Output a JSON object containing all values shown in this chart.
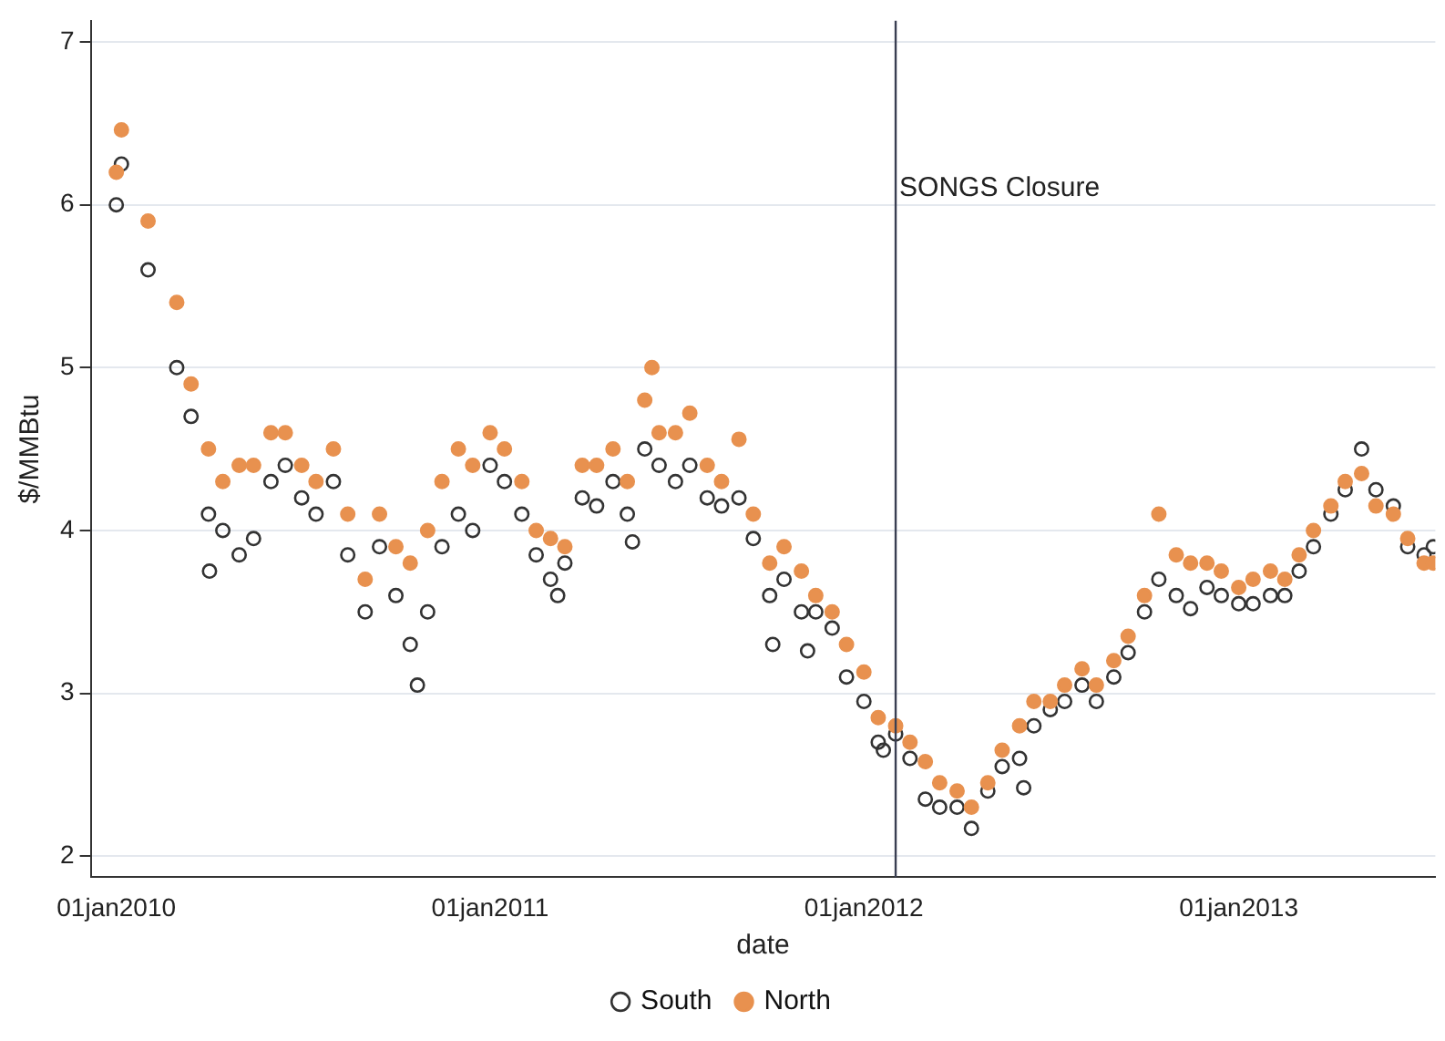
{
  "chart_data": {
    "type": "scatter",
    "xlabel": "date",
    "ylabel": "$/MMBtu",
    "xlim": [
      "2009-12-07",
      "2013-07-12"
    ],
    "ylim": [
      1.87,
      7.13
    ],
    "xticks": [
      {
        "value": "2010-01-01",
        "label": "01jan2010"
      },
      {
        "value": "2011-01-01",
        "label": "01jan2011"
      },
      {
        "value": "2012-01-01",
        "label": "01jan2012"
      },
      {
        "value": "2013-01-01",
        "label": "01jan2013"
      }
    ],
    "yticks": [
      2,
      3,
      4,
      5,
      6,
      7
    ],
    "grid": "y",
    "legend": "bottom",
    "marker": "circle",
    "ref_lines": [
      {
        "axis": "x",
        "value": "2012-02-01",
        "label": "SONGS Closure",
        "color": "#3a3f52"
      }
    ],
    "series": [
      {
        "name": "South",
        "color": "#333333",
        "x": [
          "2010-01-01",
          "2010-01-06",
          "2010-02-01",
          "2010-03-01",
          "2010-03-15",
          "2010-04-01",
          "2010-04-02",
          "2010-04-15",
          "2010-05-01",
          "2010-05-15",
          "2010-06-01",
          "2010-06-15",
          "2010-07-01",
          "2010-07-15",
          "2010-08-01",
          "2010-08-15",
          "2010-09-01",
          "2010-09-15",
          "2010-10-01",
          "2010-10-15",
          "2010-10-22",
          "2010-11-01",
          "2010-11-15",
          "2010-12-01",
          "2010-12-15",
          "2011-01-01",
          "2011-01-15",
          "2011-02-01",
          "2011-02-15",
          "2011-03-01",
          "2011-03-08",
          "2011-03-15",
          "2011-04-01",
          "2011-04-15",
          "2011-05-01",
          "2011-05-15",
          "2011-05-20",
          "2011-06-01",
          "2011-06-15",
          "2011-07-01",
          "2011-07-15",
          "2011-08-01",
          "2011-08-15",
          "2011-09-01",
          "2011-09-15",
          "2011-10-01",
          "2011-10-04",
          "2011-10-15",
          "2011-11-01",
          "2011-11-07",
          "2011-11-15",
          "2011-12-01",
          "2011-12-15",
          "2012-01-01",
          "2012-01-15",
          "2012-01-20",
          "2012-02-01",
          "2012-02-15",
          "2012-03-01",
          "2012-03-15",
          "2012-04-01",
          "2012-04-15",
          "2012-05-01",
          "2012-05-15",
          "2012-06-01",
          "2012-06-05",
          "2012-06-15",
          "2012-07-01",
          "2012-07-15",
          "2012-08-01",
          "2012-08-15",
          "2012-09-01",
          "2012-09-15",
          "2012-10-01",
          "2012-10-15",
          "2012-11-01",
          "2012-11-15",
          "2012-12-01",
          "2012-12-15",
          "2013-01-01",
          "2013-01-15",
          "2013-02-01",
          "2013-02-15",
          "2013-03-01",
          "2013-03-15",
          "2013-04-01",
          "2013-04-15",
          "2013-05-01",
          "2013-05-15",
          "2013-06-01",
          "2013-06-15",
          "2013-07-01",
          "2013-07-10"
        ],
        "values": [
          6.0,
          6.25,
          5.6,
          5.0,
          4.7,
          4.1,
          3.75,
          4.0,
          3.85,
          3.95,
          4.3,
          4.4,
          4.2,
          4.1,
          4.3,
          3.85,
          3.5,
          3.9,
          3.6,
          3.3,
          3.05,
          3.5,
          3.9,
          4.1,
          4.0,
          4.4,
          4.3,
          4.1,
          3.85,
          3.7,
          3.6,
          3.8,
          4.2,
          4.15,
          4.3,
          4.1,
          3.93,
          4.5,
          4.4,
          4.3,
          4.4,
          4.2,
          4.15,
          4.2,
          3.95,
          3.6,
          3.3,
          3.7,
          3.5,
          3.26,
          3.5,
          3.4,
          3.1,
          2.95,
          2.7,
          2.65,
          2.75,
          2.6,
          2.35,
          2.3,
          2.3,
          2.17,
          2.4,
          2.55,
          2.6,
          2.42,
          2.8,
          2.9,
          2.95,
          3.05,
          2.95,
          3.1,
          3.25,
          3.5,
          3.7,
          3.6,
          3.52,
          3.65,
          3.6,
          3.55,
          3.55,
          3.6,
          3.6,
          3.75,
          3.9,
          4.1,
          4.25,
          4.5,
          4.25,
          4.15,
          3.9,
          3.85,
          3.9
        ]
      },
      {
        "name": "North",
        "color": "#e8914f",
        "x": [
          "2010-01-01",
          "2010-01-06",
          "2010-02-01",
          "2010-03-01",
          "2010-03-15",
          "2010-04-01",
          "2010-04-15",
          "2010-05-01",
          "2010-05-15",
          "2010-06-01",
          "2010-06-15",
          "2010-07-01",
          "2010-07-15",
          "2010-08-01",
          "2010-08-15",
          "2010-09-01",
          "2010-09-15",
          "2010-10-01",
          "2010-10-15",
          "2010-11-01",
          "2010-11-15",
          "2010-12-01",
          "2010-12-15",
          "2011-01-01",
          "2011-01-15",
          "2011-02-01",
          "2011-02-15",
          "2011-03-01",
          "2011-03-15",
          "2011-04-01",
          "2011-04-15",
          "2011-05-01",
          "2011-05-15",
          "2011-06-01",
          "2011-06-08",
          "2011-06-15",
          "2011-07-01",
          "2011-07-15",
          "2011-08-01",
          "2011-08-15",
          "2011-09-01",
          "2011-09-15",
          "2011-10-01",
          "2011-10-15",
          "2011-11-01",
          "2011-11-15",
          "2011-12-01",
          "2011-12-15",
          "2012-01-01",
          "2012-01-15",
          "2012-02-01",
          "2012-02-15",
          "2012-03-01",
          "2012-03-15",
          "2012-04-01",
          "2012-04-15",
          "2012-05-01",
          "2012-05-15",
          "2012-06-01",
          "2012-06-15",
          "2012-07-01",
          "2012-07-15",
          "2012-08-01",
          "2012-08-15",
          "2012-09-01",
          "2012-09-15",
          "2012-10-01",
          "2012-10-15",
          "2012-11-01",
          "2012-11-15",
          "2012-12-01",
          "2012-12-15",
          "2013-01-01",
          "2013-01-15",
          "2013-02-01",
          "2013-02-15",
          "2013-03-01",
          "2013-03-15",
          "2013-04-01",
          "2013-04-15",
          "2013-05-01",
          "2013-05-15",
          "2013-06-01",
          "2013-06-15",
          "2013-07-01",
          "2013-07-10"
        ],
        "values": [
          6.2,
          6.46,
          5.9,
          5.4,
          4.9,
          4.5,
          4.3,
          4.4,
          4.4,
          4.6,
          4.6,
          4.4,
          4.3,
          4.5,
          4.1,
          3.7,
          4.1,
          3.9,
          3.8,
          4.0,
          4.3,
          4.5,
          4.4,
          4.6,
          4.5,
          4.3,
          4.0,
          3.95,
          3.9,
          4.4,
          4.4,
          4.5,
          4.3,
          4.8,
          5.0,
          4.6,
          4.6,
          4.72,
          4.4,
          4.3,
          4.56,
          4.1,
          3.8,
          3.9,
          3.75,
          3.6,
          3.5,
          3.3,
          3.13,
          2.85,
          2.8,
          2.7,
          2.58,
          2.45,
          2.4,
          2.3,
          2.45,
          2.65,
          2.8,
          2.95,
          2.95,
          3.05,
          3.15,
          3.05,
          3.2,
          3.35,
          3.6,
          4.1,
          3.85,
          3.8,
          3.8,
          3.75,
          3.65,
          3.7,
          3.75,
          3.7,
          3.85,
          4.0,
          4.15,
          4.3,
          4.35,
          4.15,
          4.1,
          3.95,
          3.8,
          3.8
        ]
      }
    ]
  }
}
